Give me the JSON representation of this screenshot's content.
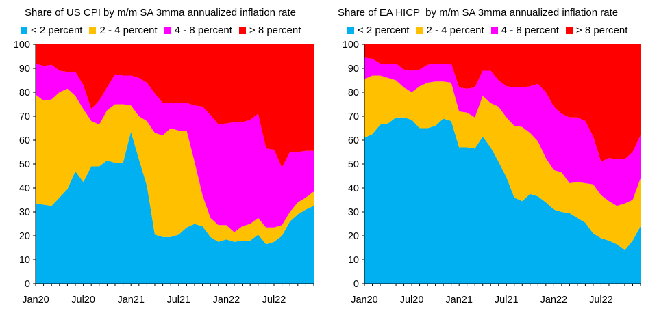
{
  "chart_data": [
    {
      "type": "area",
      "stacked": true,
      "title": "Share of US CPI by m/m SA 3mma annualized inflation rate",
      "xlabel": "",
      "ylabel": "",
      "ylim": [
        0,
        100
      ],
      "yticks": [
        0,
        10,
        20,
        30,
        40,
        50,
        60,
        70,
        80,
        90,
        100
      ],
      "xtick_labels": [
        {
          "label": "Jan20",
          "index": 0
        },
        {
          "label": "Jul20",
          "index": 6
        },
        {
          "label": "Jan21",
          "index": 12
        },
        {
          "label": "Jul21",
          "index": 18
        },
        {
          "label": "Jan22",
          "index": 24
        },
        {
          "label": "Jul22",
          "index": 30
        }
      ],
      "x": [
        "Jan20",
        "Feb20",
        "Mar20",
        "Apr20",
        "May20",
        "Jun20",
        "Jul20",
        "Aug20",
        "Sep20",
        "Oct20",
        "Nov20",
        "Dec20",
        "Jan21",
        "Feb21",
        "Mar21",
        "Apr21",
        "May21",
        "Jun21",
        "Jul21",
        "Aug21",
        "Sep21",
        "Oct21",
        "Nov21",
        "Dec21",
        "Jan22",
        "Feb22",
        "Mar22",
        "Apr22",
        "May22",
        "Jun22",
        "Jul22",
        "Aug22",
        "Sep22",
        "Oct22",
        "Nov22",
        "Dec22"
      ],
      "legend_position": "top",
      "series": [
        {
          "name": "< 2 percent",
          "color": "#00B0F0",
          "values": [
            33.5,
            33,
            32.5,
            36,
            39.5,
            47,
            42.5,
            49,
            49,
            51.5,
            50.5,
            50.5,
            63.5,
            52,
            41,
            20.5,
            19.5,
            19.5,
            20.5,
            23.5,
            25,
            24,
            19.5,
            17.5,
            18.5,
            17.5,
            18,
            18,
            20.5,
            16.5,
            17.5,
            20,
            26,
            29,
            31,
            32.5
          ]
        },
        {
          "name": "2 - 4 percent",
          "color": "#FFC000",
          "values": [
            45.5,
            43.5,
            44.5,
            44,
            42,
            31.5,
            30.5,
            19,
            17.5,
            21,
            24.5,
            24.5,
            11,
            18,
            27,
            42.5,
            42.5,
            45.5,
            43.5,
            40.5,
            26,
            13,
            8,
            7,
            6,
            4,
            6,
            7,
            7,
            7,
            6,
            4.5,
            4,
            5,
            5,
            6
          ]
        },
        {
          "name": "4 - 8 percent",
          "color": "#FF00FF",
          "values": [
            13,
            14.5,
            14.5,
            9,
            7,
            10,
            10,
            5,
            10,
            9.5,
            12.5,
            12,
            12.5,
            16,
            16,
            16.5,
            13.5,
            10.5,
            11.5,
            11.5,
            23.5,
            37,
            43,
            42,
            42.5,
            46,
            43.5,
            43.5,
            43.5,
            33,
            32.5,
            24,
            25,
            21,
            19.5,
            17
          ]
        },
        {
          "name": "> 8 percent",
          "color": "#FF0000",
          "values": [
            8,
            9,
            8.5,
            11,
            11.5,
            11.5,
            17,
            27,
            23.5,
            18,
            12.5,
            13,
            13,
            14,
            16,
            20.5,
            24.5,
            24.5,
            24.5,
            24.5,
            25.5,
            26,
            29.5,
            33.5,
            33,
            32.5,
            32.5,
            31.5,
            29,
            43.5,
            44,
            51.5,
            45,
            45,
            44.5,
            44.5
          ]
        }
      ]
    },
    {
      "type": "area",
      "stacked": true,
      "title": "Share of EA HICP  by m/m SA 3mma annualized inflation rate",
      "xlabel": "",
      "ylabel": "",
      "ylim": [
        0,
        100
      ],
      "yticks": [
        0,
        10,
        20,
        30,
        40,
        50,
        60,
        70,
        80,
        90,
        100
      ],
      "xtick_labels": [
        {
          "label": "Jan20",
          "index": 0
        },
        {
          "label": "Jul20",
          "index": 6
        },
        {
          "label": "Jan21",
          "index": 12
        },
        {
          "label": "Jul21",
          "index": 18
        },
        {
          "label": "Jan22",
          "index": 24
        },
        {
          "label": "Jul22",
          "index": 30
        }
      ],
      "x": [
        "Jan20",
        "Feb20",
        "Mar20",
        "Apr20",
        "May20",
        "Jun20",
        "Jul20",
        "Aug20",
        "Sep20",
        "Oct20",
        "Nov20",
        "Dec20",
        "Jan21",
        "Feb21",
        "Mar21",
        "Apr21",
        "May21",
        "Jun21",
        "Jul21",
        "Aug21",
        "Sep21",
        "Oct21",
        "Nov21",
        "Dec21",
        "Jan22",
        "Feb22",
        "Mar22",
        "Apr22",
        "May22",
        "Jun22",
        "Jul22",
        "Aug22",
        "Sep22",
        "Oct22",
        "Nov22",
        "Dec22"
      ],
      "legend_position": "top",
      "series": [
        {
          "name": "< 2 percent",
          "color": "#00B0F0",
          "values": [
            61,
            62.5,
            66.5,
            67,
            69.5,
            69.5,
            68.5,
            65,
            65,
            66,
            69,
            68,
            57,
            57,
            56.5,
            61.5,
            57,
            51,
            44.5,
            36,
            34.5,
            37.5,
            36.5,
            34,
            31,
            30,
            29.5,
            27.5,
            25.5,
            21,
            19,
            18,
            16.5,
            14,
            18,
            24
          ]
        },
        {
          "name": "2 - 4 percent",
          "color": "#FFC000",
          "values": [
            24.5,
            24.5,
            20.5,
            19,
            15.5,
            12.5,
            11.5,
            17.5,
            19,
            18.5,
            15.5,
            16,
            15,
            14.5,
            13,
            17,
            18.5,
            23,
            25,
            30,
            31,
            25.5,
            23,
            18.5,
            16.5,
            16.5,
            12.5,
            15,
            16.5,
            20.5,
            18,
            16.5,
            16,
            19.5,
            17,
            20
          ]
        },
        {
          "name": "4 - 8 percent",
          "color": "#FF00FF",
          "values": [
            9,
            7,
            5,
            6,
            7,
            7.5,
            9,
            7,
            7.5,
            7.5,
            7.5,
            8,
            10,
            10,
            12.5,
            10.5,
            13.5,
            11,
            13,
            16,
            16.5,
            19.5,
            24,
            27.5,
            26.5,
            24.5,
            27.5,
            27,
            26,
            20,
            14,
            18,
            19.5,
            18.5,
            20,
            18
          ]
        },
        {
          "name": "> 8 percent",
          "color": "#FF0000",
          "values": [
            5.5,
            6,
            8,
            8,
            8,
            10.5,
            11,
            10.5,
            8.5,
            8,
            8,
            8,
            18,
            18.5,
            18,
            11,
            11,
            15,
            17.5,
            18,
            18,
            17.5,
            16.5,
            20,
            26,
            29,
            30.5,
            30.5,
            32,
            38.5,
            49,
            47.5,
            48,
            48,
            45,
            38
          ]
        }
      ]
    }
  ]
}
